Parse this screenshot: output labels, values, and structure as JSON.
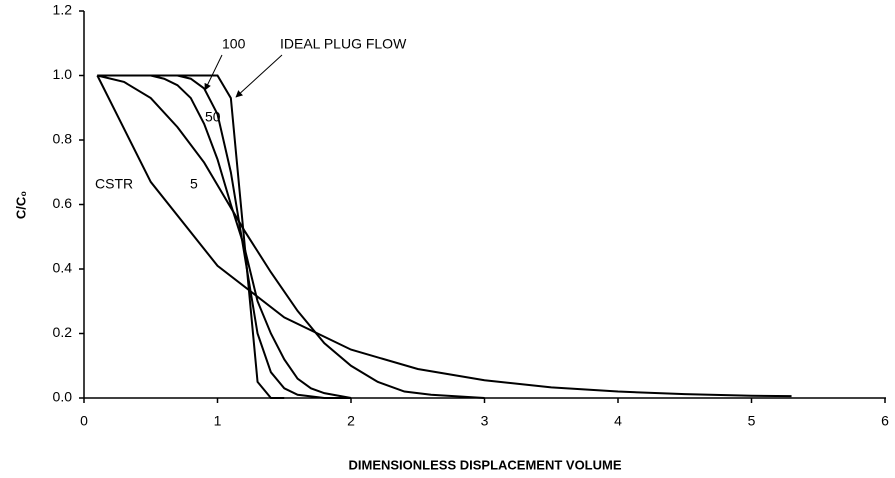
{
  "chart_data": {
    "type": "line",
    "xlabel": "DIMENSIONLESS DISPLACEMENT VOLUME",
    "ylabel": "C/C₀",
    "xlim": [
      0,
      6
    ],
    "xticks": [
      0,
      1,
      2,
      3,
      4,
      5,
      6
    ],
    "ylim": [
      0,
      1.2
    ],
    "yticks": [
      {
        "value": 0,
        "label": "0.0"
      },
      0.2,
      0.4,
      0.6,
      0.8,
      {
        "value": 1,
        "label": "1.0"
      },
      1.2
    ],
    "color": "#000000",
    "series": [
      {
        "name": "CSTR",
        "x": [
          0.1,
          0.5,
          1,
          1.5,
          2,
          2.5,
          3,
          3.5,
          4,
          4.5,
          5,
          5.3
        ],
        "values": [
          1,
          0.67,
          0.41,
          0.25,
          0.15,
          0.09,
          0.055,
          0.033,
          0.02,
          0.012,
          0.007,
          0.006
        ]
      },
      {
        "name": "5",
        "x": [
          0.1,
          0.3,
          0.5,
          0.7,
          0.9,
          1.0,
          1.2,
          1.4,
          1.6,
          1.8,
          2.0,
          2.2,
          2.4,
          2.6,
          3.0
        ],
        "values": [
          1,
          0.98,
          0.93,
          0.84,
          0.73,
          0.66,
          0.52,
          0.39,
          0.27,
          0.17,
          0.1,
          0.05,
          0.02,
          0.01,
          0
        ]
      },
      {
        "name": "50",
        "x": [
          0.1,
          0.5,
          0.6,
          0.7,
          0.8,
          0.9,
          1.0,
          1.1,
          1.2,
          1.3,
          1.4,
          1.5,
          1.6,
          1.7,
          1.8,
          2.0
        ],
        "values": [
          1,
          1,
          0.99,
          0.97,
          0.93,
          0.85,
          0.74,
          0.6,
          0.47,
          0.3,
          0.2,
          0.12,
          0.06,
          0.03,
          0.015,
          0
        ]
      },
      {
        "name": "100",
        "x": [
          0.1,
          0.5,
          0.7,
          0.8,
          0.9,
          1.0,
          1.1,
          1.2,
          1.3,
          1.4,
          1.5,
          1.6,
          1.8,
          2.0
        ],
        "values": [
          1,
          1,
          1,
          0.99,
          0.96,
          0.88,
          0.7,
          0.45,
          0.2,
          0.08,
          0.03,
          0.01,
          0,
          0
        ]
      },
      {
        "name": "IDEAL PLUG FLOW",
        "x": [
          0.1,
          0.5,
          1.0,
          1.1,
          1.3,
          1.4,
          1.5
        ],
        "values": [
          1,
          1,
          1,
          0.93,
          0.05,
          0,
          0
        ]
      }
    ]
  }
}
